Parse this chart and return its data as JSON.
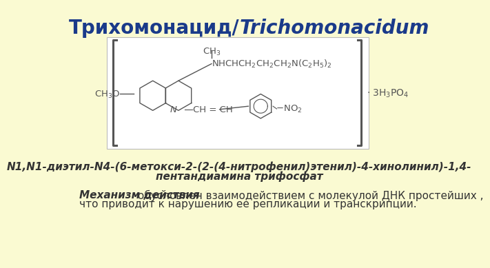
{
  "background_color": "#fafad2",
  "title_color": "#1a3a8a",
  "title_fontsize": 20,
  "structure_box_facecolor": "#ffffff",
  "structure_box_edgecolor": "#bbbbbb",
  "iupac_line1": "N1,N1-диэтил-N4-(6-метокси-2-(2-(4-нитрофенил)этенил)-4-хинолинил)-1,4-",
  "iupac_line2": "пентандиамина трифосфат",
  "iupac_fontsize": 11,
  "iupac_color": "#333333",
  "mechanism_italic": "Механизм действия",
  "mechanism_normal": " обусловлен взаимодействием с молекулой ДНК простейших ,",
  "mechanism_line2": "что приводит к нарушению ее репликации и транскрипции.",
  "mechanism_fontsize": 11,
  "mechanism_color": "#333333",
  "formula_color": "#555555",
  "bracket_color": "#555555"
}
